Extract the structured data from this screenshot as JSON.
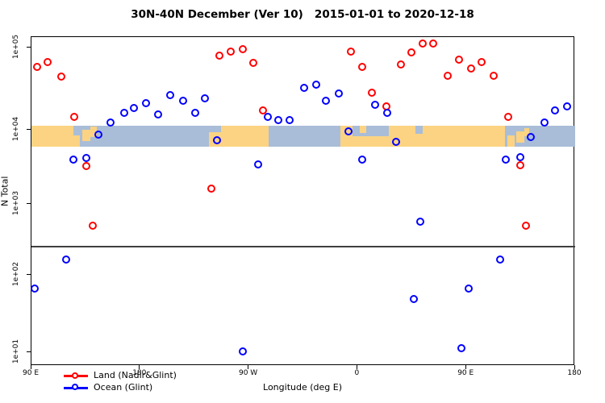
{
  "title": "30N-40N December (Ver 10)   2015-01-01 to 2020-12-18",
  "x_axis": {
    "label": "Longitude (deg E)",
    "ticks": [
      {
        "deg": -270,
        "label": "90 E"
      },
      {
        "deg": -180,
        "label": "180"
      },
      {
        "deg": -90,
        "label": "90 W"
      },
      {
        "deg": 0,
        "label": "0"
      },
      {
        "deg": 90,
        "label": "90 E"
      },
      {
        "deg": 180,
        "label": "180"
      }
    ]
  },
  "y_axis": {
    "label": "N Total",
    "ticks": [
      {
        "exp": 5,
        "label": "1e+05"
      },
      {
        "exp": 4,
        "label": "1e+04"
      },
      {
        "exp": 3,
        "label": "1e+03"
      },
      {
        "exp": 2,
        "label": "1e+02"
      },
      {
        "exp": 1,
        "label": "1e+01"
      }
    ]
  },
  "legend": {
    "items": [
      {
        "label": "Land (Nadir&Glint)",
        "color": "#ff0000"
      },
      {
        "label": "Ocean (Glint)",
        "color": "#0000ff"
      }
    ]
  },
  "colors": {
    "land_marker": "#ff0000",
    "ocean_marker": "#0000ff",
    "map_land": "#fbd382",
    "map_ocean": "#a9bdd8",
    "threshold_line": "#3f3f3f"
  },
  "threshold_line_value": 250,
  "chart_data": {
    "type": "scatter",
    "title": "30N-40N December (Ver 10)   2015-01-01 to 2020-12-18",
    "xlabel": "Longitude (deg E)",
    "ylabel": "N Total",
    "x_range_deg": [
      -270,
      180
    ],
    "y_scale": "log10",
    "y_range": [
      10,
      200000
    ],
    "grid": false,
    "legend_position": "bottom-left",
    "series": [
      {
        "name": "Land (Nadir&Glint)",
        "marker": "open-circle",
        "color": "#ff0000",
        "points": [
          {
            "lon": -265,
            "n": 57000
          },
          {
            "lon": -256,
            "n": 66000
          },
          {
            "lon": -245,
            "n": 44000
          },
          {
            "lon": -234,
            "n": 14000
          },
          {
            "lon": -224,
            "n": 3200
          },
          {
            "lon": -219,
            "n": 490
          },
          {
            "lon": -121,
            "n": 1600
          },
          {
            "lon": -114,
            "n": 78000
          },
          {
            "lon": -105,
            "n": 88000
          },
          {
            "lon": -95,
            "n": 95000
          },
          {
            "lon": -86,
            "n": 64000
          },
          {
            "lon": -78,
            "n": 17000
          },
          {
            "lon": -5,
            "n": 88000
          },
          {
            "lon": 4,
            "n": 57000
          },
          {
            "lon": 12,
            "n": 28000
          },
          {
            "lon": 24,
            "n": 19000
          },
          {
            "lon": 36,
            "n": 62000
          },
          {
            "lon": 45,
            "n": 86000
          },
          {
            "lon": 54,
            "n": 110000
          },
          {
            "lon": 63,
            "n": 110000
          },
          {
            "lon": 75,
            "n": 45000
          },
          {
            "lon": 84,
            "n": 70000
          },
          {
            "lon": 94,
            "n": 55000
          },
          {
            "lon": 103,
            "n": 66000
          },
          {
            "lon": 113,
            "n": 45000
          },
          {
            "lon": 125,
            "n": 14000
          },
          {
            "lon": 135,
            "n": 3300
          },
          {
            "lon": 140,
            "n": 490
          }
        ]
      },
      {
        "name": "Ocean (Glint)",
        "marker": "open-circle",
        "color": "#0000ff",
        "points": [
          {
            "lon": -267,
            "n": 65
          },
          {
            "lon": -241,
            "n": 160
          },
          {
            "lon": -235,
            "n": 3900
          },
          {
            "lon": -224,
            "n": 4100
          },
          {
            "lon": -214,
            "n": 8400
          },
          {
            "lon": -204,
            "n": 12000
          },
          {
            "lon": -193,
            "n": 16000
          },
          {
            "lon": -185,
            "n": 18000
          },
          {
            "lon": -175,
            "n": 21000
          },
          {
            "lon": -165,
            "n": 15000
          },
          {
            "lon": -155,
            "n": 26000
          },
          {
            "lon": -144,
            "n": 22000
          },
          {
            "lon": -134,
            "n": 16000
          },
          {
            "lon": -126,
            "n": 24000
          },
          {
            "lon": -116,
            "n": 7200
          },
          {
            "lon": -95,
            "n": 10
          },
          {
            "lon": -82,
            "n": 3400
          },
          {
            "lon": -74,
            "n": 14000
          },
          {
            "lon": -65,
            "n": 13000
          },
          {
            "lon": -56,
            "n": 13000
          },
          {
            "lon": -44,
            "n": 32000
          },
          {
            "lon": -34,
            "n": 35000
          },
          {
            "lon": -26,
            "n": 22000
          },
          {
            "lon": -15,
            "n": 27000
          },
          {
            "lon": -7,
            "n": 9300
          },
          {
            "lon": 4,
            "n": 3900
          },
          {
            "lon": 15,
            "n": 20000
          },
          {
            "lon": 25,
            "n": 16000
          },
          {
            "lon": 32,
            "n": 6700
          },
          {
            "lon": 47,
            "n": 48
          },
          {
            "lon": 52,
            "n": 560
          },
          {
            "lon": 86,
            "n": 11
          },
          {
            "lon": 92,
            "n": 65
          },
          {
            "lon": 118,
            "n": 160
          },
          {
            "lon": 123,
            "n": 3900
          },
          {
            "lon": 135,
            "n": 4200
          },
          {
            "lon": 144,
            "n": 7900
          },
          {
            "lon": 155,
            "n": 12000
          },
          {
            "lon": 164,
            "n": 17000
          },
          {
            "lon": 174,
            "n": 19000
          }
        ]
      }
    ]
  },
  "map_band": {
    "description": "30N-40N land/ocean world strip at 1e+04 level",
    "land_segments": [
      {
        "from": -270,
        "to": -235,
        "t": 0.0,
        "b": 1.0
      },
      {
        "from": -236,
        "to": -230,
        "t": 0.45,
        "b": 1.0
      },
      {
        "from": -228,
        "to": -221,
        "t": 0.2,
        "b": 0.75
      },
      {
        "from": -221,
        "to": -216,
        "t": 0.05,
        "b": 0.55
      },
      {
        "from": -123,
        "to": -74,
        "t": 0.3,
        "b": 1.0
      },
      {
        "from": -113,
        "to": -74,
        "t": 0.0,
        "b": 0.3
      },
      {
        "from": -14,
        "to": 45,
        "t": 0.5,
        "b": 1.0
      },
      {
        "from": -14,
        "to": -4,
        "t": 0.0,
        "b": 0.5
      },
      {
        "from": 2,
        "to": 7,
        "t": 0.0,
        "b": 0.35
      },
      {
        "from": 26,
        "to": 45,
        "t": 0.0,
        "b": 0.5
      },
      {
        "from": 45,
        "to": 122,
        "t": 0.0,
        "b": 1.0
      },
      {
        "from": 48,
        "to": 54,
        "t": 0.0,
        "b": 0.38,
        "water": true
      },
      {
        "from": 124,
        "to": 130,
        "t": 0.45,
        "b": 1.0
      },
      {
        "from": 131,
        "to": 138,
        "t": 0.25,
        "b": 0.8
      },
      {
        "from": 138,
        "to": 142,
        "t": 0.1,
        "b": 0.5
      }
    ]
  }
}
